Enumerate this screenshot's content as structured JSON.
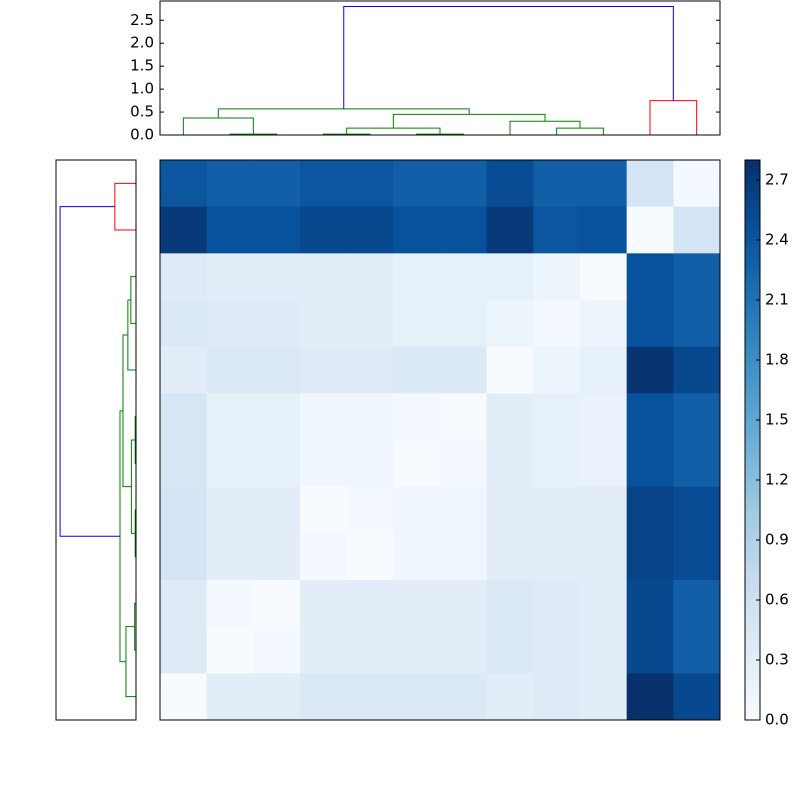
{
  "chart_data": [
    {
      "type": "dendrogram",
      "orientation": "top",
      "xlim": [
        0,
        120
      ],
      "ylim": [
        0,
        2.92
      ],
      "yticks": [
        {
          "value": 0,
          "label": "0.0"
        },
        0.5,
        {
          "value": 1,
          "label": "1.0"
        },
        1.5,
        {
          "value": 2,
          "label": "2.0"
        },
        2.5
      ],
      "icoord": [
        [
          15,
          15,
          25,
          25
        ],
        [
          5,
          5,
          20,
          20
        ],
        [
          35,
          35,
          45,
          45
        ],
        [
          55,
          55,
          65,
          65
        ],
        [
          40,
          40,
          60,
          60
        ],
        [
          85,
          85,
          95,
          95
        ],
        [
          75,
          75,
          90,
          90
        ],
        [
          50,
          50,
          82.5,
          82.5
        ],
        [
          12.5,
          12.5,
          66.25,
          66.25
        ],
        [
          105,
          105,
          115,
          115
        ],
        [
          39.375,
          39.375,
          110,
          110
        ]
      ],
      "dcoord": [
        [
          0,
          0.02,
          0.02,
          0
        ],
        [
          0,
          0.37,
          0.37,
          0.02
        ],
        [
          0,
          0.02,
          0.02,
          0
        ],
        [
          0,
          0.02,
          0.02,
          0
        ],
        [
          0.02,
          0.15,
          0.15,
          0.02
        ],
        [
          0,
          0.15,
          0.15,
          0
        ],
        [
          0,
          0.3,
          0.3,
          0.15
        ],
        [
          0.15,
          0.45,
          0.45,
          0.3
        ],
        [
          0.37,
          0.57,
          0.57,
          0.45
        ],
        [
          0,
          0.75,
          0.75,
          0
        ],
        [
          0.57,
          2.8,
          2.8,
          0.75
        ]
      ],
      "colors": [
        "#008000",
        "#008000",
        "#008000",
        "#008000",
        "#008000",
        "#008000",
        "#008000",
        "#008000",
        "#008000",
        "#ff0000",
        "#0000ff"
      ]
    },
    {
      "type": "dendrogram",
      "orientation": "left",
      "xlim": [
        2.95,
        0
      ],
      "ylim": [
        0,
        120
      ],
      "icoord": [
        [
          25,
          25,
          35,
          35
        ],
        [
          30,
          30,
          45,
          45
        ],
        [
          55,
          55,
          65,
          65
        ],
        [
          75,
          75,
          85,
          85
        ],
        [
          60,
          60,
          80,
          80
        ],
        [
          37.5,
          37.5,
          70,
          70
        ],
        [
          95,
          95,
          105,
          105
        ],
        [
          100,
          100,
          115,
          115
        ],
        [
          53.75,
          53.75,
          107.5,
          107.5
        ],
        [
          5,
          5,
          15,
          15
        ],
        [
          10,
          10,
          80.625,
          80.625
        ]
      ],
      "dcoord": [
        [
          0,
          0.19,
          0.19,
          0
        ],
        [
          0.19,
          0.3,
          0.3,
          0
        ],
        [
          0,
          0.03,
          0.03,
          0
        ],
        [
          0,
          0.03,
          0.03,
          0
        ],
        [
          0.03,
          0.17,
          0.17,
          0.03
        ],
        [
          0.3,
          0.48,
          0.48,
          0.17
        ],
        [
          0,
          0.05,
          0.05,
          0
        ],
        [
          0.05,
          0.37,
          0.37,
          0
        ],
        [
          0.48,
          0.59,
          0.59,
          0.37
        ],
        [
          0,
          0.78,
          0.78,
          0
        ],
        [
          0.78,
          2.8,
          2.8,
          0.59
        ]
      ],
      "colors": [
        "#008000",
        "#008000",
        "#008000",
        "#008000",
        "#008000",
        "#008000",
        "#008000",
        "#008000",
        "#008000",
        "#ff0000",
        "#0000ff"
      ]
    },
    {
      "type": "heatmap",
      "colormap": "Blues",
      "clim": [
        0,
        2.8
      ],
      "cticks": [
        {
          "value": 0,
          "label": "0.0"
        },
        0.3,
        0.6,
        0.9,
        1.2,
        1.5,
        1.8,
        2.1,
        2.4,
        2.7
      ],
      "values": [
        [
          2.4,
          2.3,
          2.3,
          2.4,
          2.4,
          2.3,
          2.3,
          2.5,
          2.3,
          2.3,
          0.5,
          0.05
        ],
        [
          2.7,
          2.45,
          2.45,
          2.55,
          2.55,
          2.45,
          2.45,
          2.7,
          2.4,
          2.45,
          0.0,
          0.5
        ],
        [
          0.35,
          0.3,
          0.3,
          0.3,
          0.3,
          0.25,
          0.25,
          0.25,
          0.15,
          0.0,
          2.45,
          2.3
        ],
        [
          0.4,
          0.35,
          0.35,
          0.3,
          0.3,
          0.25,
          0.25,
          0.15,
          0.05,
          0.15,
          2.45,
          2.3
        ],
        [
          0.3,
          0.4,
          0.4,
          0.35,
          0.35,
          0.4,
          0.4,
          0.0,
          0.15,
          0.25,
          2.75,
          2.55
        ],
        [
          0.45,
          0.25,
          0.25,
          0.1,
          0.1,
          0.05,
          0.0,
          0.3,
          0.25,
          0.2,
          2.45,
          2.3
        ],
        [
          0.45,
          0.25,
          0.25,
          0.1,
          0.1,
          0.0,
          0.05,
          0.3,
          0.25,
          0.2,
          2.45,
          2.3
        ],
        [
          0.5,
          0.3,
          0.3,
          0.0,
          0.05,
          0.1,
          0.1,
          0.3,
          0.3,
          0.3,
          2.6,
          2.5
        ],
        [
          0.5,
          0.3,
          0.3,
          0.05,
          0.0,
          0.1,
          0.1,
          0.3,
          0.3,
          0.3,
          2.6,
          2.5
        ],
        [
          0.35,
          0.05,
          0.0,
          0.3,
          0.3,
          0.3,
          0.3,
          0.4,
          0.35,
          0.3,
          2.55,
          2.3
        ],
        [
          0.35,
          0.0,
          0.05,
          0.3,
          0.3,
          0.3,
          0.3,
          0.4,
          0.35,
          0.3,
          2.55,
          2.3
        ],
        [
          0.0,
          0.3,
          0.3,
          0.4,
          0.4,
          0.4,
          0.4,
          0.3,
          0.35,
          0.3,
          2.8,
          2.55
        ]
      ]
    }
  ]
}
